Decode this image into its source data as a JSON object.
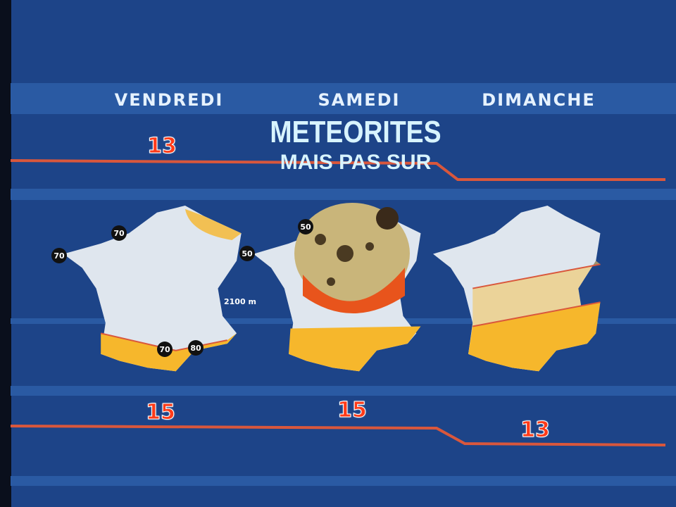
{
  "days": [
    {
      "label": "VENDREDI",
      "temp_top": "13",
      "temp_bottom": "15"
    },
    {
      "label": "SAMEDI",
      "temp_bottom": "15"
    },
    {
      "label": "DIMANCHE",
      "temp_bottom": "13"
    }
  ],
  "headline": {
    "line1": "METEORITES",
    "line2": "MAIS PAS SUR"
  },
  "vendredi_map": {
    "winds": [
      "70",
      "70",
      "50",
      "70",
      "80"
    ],
    "altitude": "2100 m"
  },
  "samedi_map": {
    "winds": [
      "50"
    ]
  },
  "colors": {
    "background": "#1d4488",
    "line": "#d9573c",
    "sun": "#f6b72c",
    "cloud": "#dfe6ee"
  }
}
